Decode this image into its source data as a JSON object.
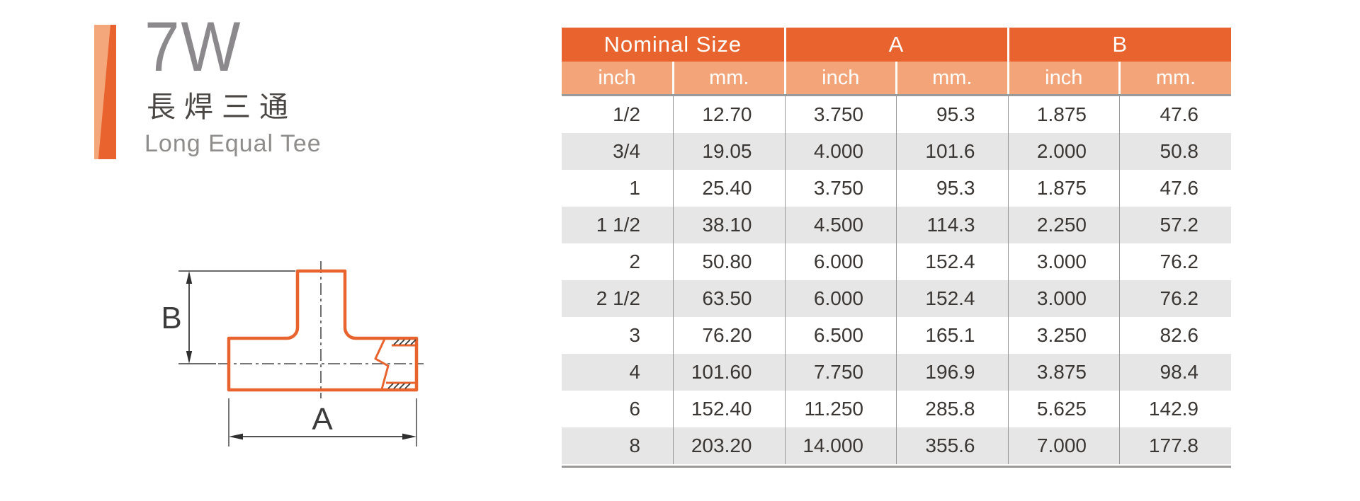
{
  "product": {
    "code": "7W",
    "name_zh": "長焊三通",
    "name_en": "Long Equal Tee"
  },
  "drawing": {
    "dim_a_label": "A",
    "dim_b_label": "B"
  },
  "table": {
    "group_headers": [
      {
        "label": "Nominal Size",
        "span": 2
      },
      {
        "label": "A",
        "span": 2
      },
      {
        "label": "B",
        "span": 2
      }
    ],
    "sub_headers": [
      "inch",
      "mm.",
      "inch",
      "mm.",
      "inch",
      "mm."
    ],
    "rows": [
      [
        "1/2",
        "12.70",
        "3.750",
        "95.3",
        "1.875",
        "47.6"
      ],
      [
        "3/4",
        "19.05",
        "4.000",
        "101.6",
        "2.000",
        "50.8"
      ],
      [
        "1",
        "25.40",
        "3.750",
        "95.3",
        "1.875",
        "47.6"
      ],
      [
        "1 1/2",
        "38.10",
        "4.500",
        "114.3",
        "2.250",
        "57.2"
      ],
      [
        "2",
        "50.80",
        "6.000",
        "152.4",
        "3.000",
        "76.2"
      ],
      [
        "2 1/2",
        "63.50",
        "6.000",
        "152.4",
        "3.000",
        "76.2"
      ],
      [
        "3",
        "76.20",
        "6.500",
        "165.1",
        "3.250",
        "82.6"
      ],
      [
        "4",
        "101.60",
        "7.750",
        "196.9",
        "3.875",
        "98.4"
      ],
      [
        "6",
        "152.40",
        "11.250",
        "285.8",
        "5.625",
        "142.9"
      ],
      [
        "8",
        "203.20",
        "14.000",
        "355.6",
        "7.000",
        "177.8"
      ]
    ]
  },
  "colors": {
    "accent": "#e8632d",
    "accent_light": "#f4a77b",
    "accent_light2": "#f3a478",
    "row_alt": "#e7e6e6"
  }
}
